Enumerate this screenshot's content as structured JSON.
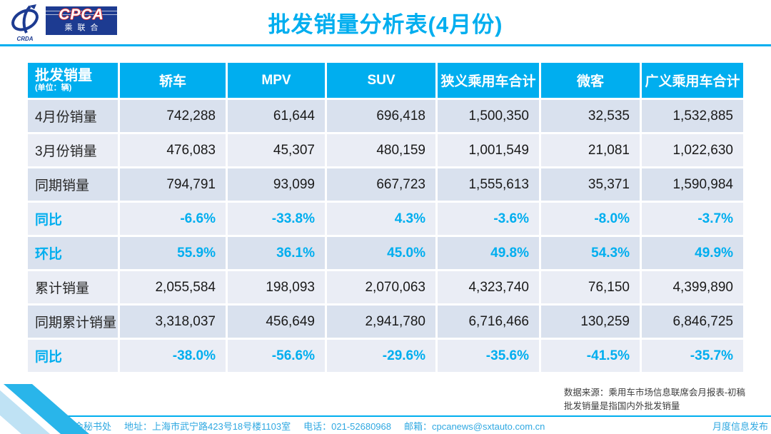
{
  "header": {
    "title": "批发销量分析表(4月份)",
    "logo": {
      "emblem_text": "CRDA",
      "box_line1": "CPCA",
      "box_line2": "乘联合"
    }
  },
  "table": {
    "corner": {
      "label": "批发销量",
      "unit": "(单位：辆)"
    },
    "columns": [
      "轿车",
      "MPV",
      "SUV",
      "狭义乘用车合计",
      "微客",
      "广义乘用车合计"
    ],
    "rows": [
      {
        "label": "4月份销量",
        "type": "number",
        "values": [
          "742,288",
          "61,644",
          "696,418",
          "1,500,350",
          "32,535",
          "1,532,885"
        ]
      },
      {
        "label": "3月份销量",
        "type": "number",
        "values": [
          "476,083",
          "45,307",
          "480,159",
          "1,001,549",
          "21,081",
          "1,022,630"
        ]
      },
      {
        "label": "同期销量",
        "type": "number",
        "values": [
          "794,791",
          "93,099",
          "667,723",
          "1,555,613",
          "35,371",
          "1,590,984"
        ]
      },
      {
        "label": "同比",
        "type": "percent",
        "values": [
          "-6.6%",
          "-33.8%",
          "4.3%",
          "-3.6%",
          "-8.0%",
          "-3.7%"
        ]
      },
      {
        "label": "环比",
        "type": "percent",
        "values": [
          "55.9%",
          "36.1%",
          "45.0%",
          "49.8%",
          "54.3%",
          "49.9%"
        ]
      },
      {
        "label": "累计销量",
        "type": "number",
        "values": [
          "2,055,584",
          "198,093",
          "2,070,063",
          "4,323,740",
          "76,150",
          "4,399,890"
        ]
      },
      {
        "label": "同期累计销量",
        "type": "number",
        "values": [
          "3,318,037",
          "456,649",
          "2,941,780",
          "6,716,466",
          "130,259",
          "6,846,725"
        ]
      },
      {
        "label": "同比",
        "type": "percent",
        "values": [
          "-38.0%",
          "-56.6%",
          "-29.6%",
          "-35.6%",
          "-41.5%",
          "-35.7%"
        ]
      }
    ]
  },
  "footnote": {
    "line1": "数据来源：乘用车市场信息联席会月报表-初稿",
    "line2": "批发销量是指国内外批发销量"
  },
  "footer": {
    "left_segments": [
      "乘联会秘书处",
      "地址：上海市武宁路423号18号楼1103室",
      "电话：021-52680968",
      "邮箱：cpcanews@sxtauto.com.cn"
    ],
    "right": "月度信息发布"
  },
  "colors": {
    "accent": "#00AEEF",
    "row_dark": "#D9E1EE",
    "row_light": "#EAEDF5",
    "logo_navy": "#1D3B91",
    "cpca_outline_red": "#E03131",
    "number_text": "#1A1A1A"
  }
}
